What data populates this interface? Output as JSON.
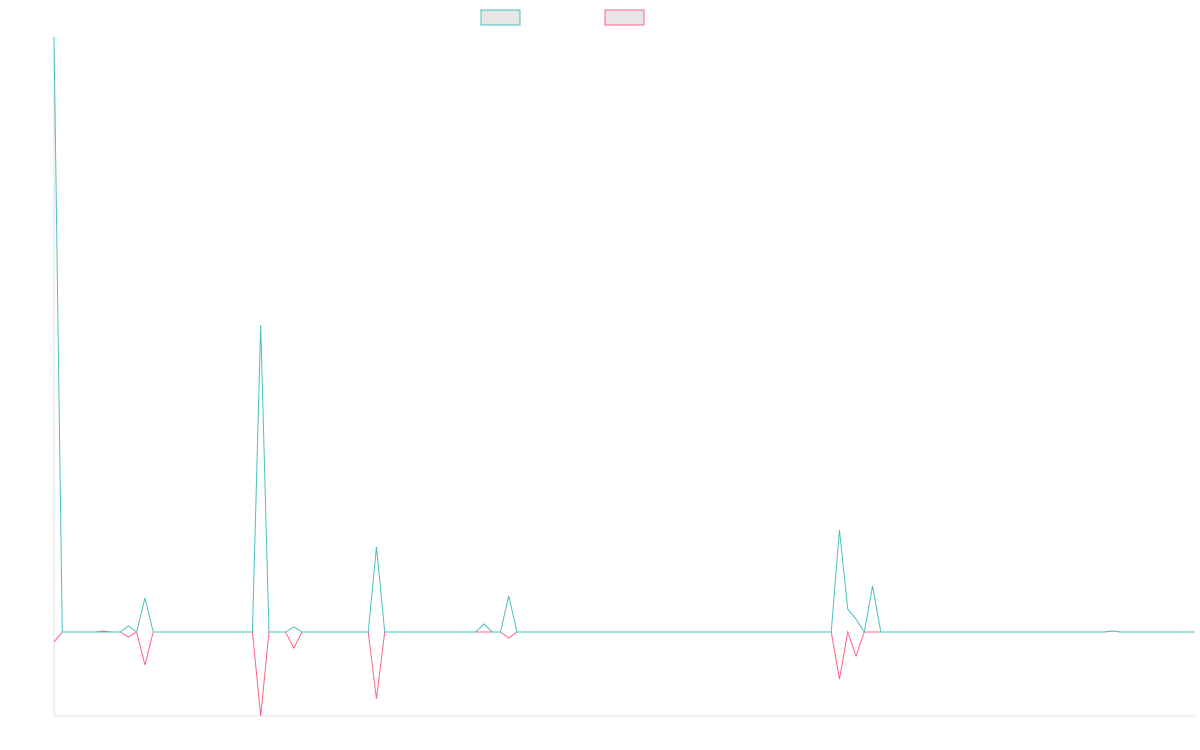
{
  "chart_data": {
    "type": "line",
    "ylim": [
      -8.4,
      59.5
    ],
    "series": [
      {
        "color": "#4bc0c0",
        "values": [
          59.5,
          0,
          0,
          0,
          0,
          0,
          0,
          0,
          0,
          0.6,
          0,
          3.4,
          0,
          0,
          0,
          0,
          0,
          0,
          0,
          0,
          0,
          0,
          0,
          0,
          0,
          30.7,
          0,
          0,
          0,
          0.5,
          0,
          0,
          0,
          0,
          0,
          0,
          0,
          0,
          0,
          8.5,
          0,
          0,
          0,
          0,
          0,
          0,
          0,
          0,
          0,
          0,
          0,
          0,
          0.8,
          0,
          0,
          3.6,
          0,
          0,
          0,
          0,
          0,
          0,
          0,
          0,
          0,
          0,
          0,
          0,
          0,
          0,
          0,
          0,
          0,
          0,
          0,
          0,
          0,
          0,
          0,
          0,
          0,
          0,
          0,
          0,
          0,
          0,
          0,
          0,
          0,
          0,
          0,
          0,
          0,
          0,
          0,
          10.2,
          2.3,
          1.3,
          0,
          4.6,
          0,
          0,
          0,
          0,
          0,
          0,
          0,
          0,
          0,
          0,
          0,
          0,
          0,
          0,
          0,
          0,
          0,
          0,
          0,
          0,
          0,
          0,
          0,
          0,
          0,
          0,
          0,
          0,
          0.1,
          0,
          0,
          0,
          0,
          0,
          0,
          0,
          0,
          0,
          0
        ]
      },
      {
        "color": "#ff6384",
        "values": [
          -1,
          0,
          0,
          0,
          0,
          0,
          0.1,
          0,
          0,
          -0.5,
          0,
          -3.3,
          0,
          0,
          0,
          0,
          0,
          0,
          0,
          0,
          0,
          0,
          0,
          0,
          0,
          -8.4,
          0,
          0,
          0,
          -1.6,
          0,
          0,
          0,
          0,
          0,
          0,
          0,
          0,
          0,
          -6.7,
          0,
          0,
          0,
          0,
          0,
          0,
          0,
          0,
          0,
          0,
          0,
          0,
          0,
          0,
          0,
          -0.6,
          0,
          0,
          0,
          0,
          0,
          0,
          0,
          0,
          0,
          0,
          0,
          0,
          0,
          0,
          0,
          0,
          0,
          0,
          0,
          0,
          0,
          0,
          0,
          0,
          0,
          0,
          0,
          0,
          0,
          0,
          0,
          0,
          0,
          0,
          0,
          0,
          0,
          0,
          0,
          -4.7,
          0,
          -2.4,
          0,
          0,
          0,
          0,
          0,
          0,
          0,
          0,
          0,
          0,
          0,
          0,
          0,
          0,
          0,
          0,
          0,
          0,
          0,
          0,
          0,
          0,
          0,
          0,
          0,
          0,
          0,
          0,
          0,
          0,
          0.1,
          0,
          0,
          0,
          0,
          0,
          0,
          0,
          0,
          0,
          0
        ]
      }
    ]
  }
}
